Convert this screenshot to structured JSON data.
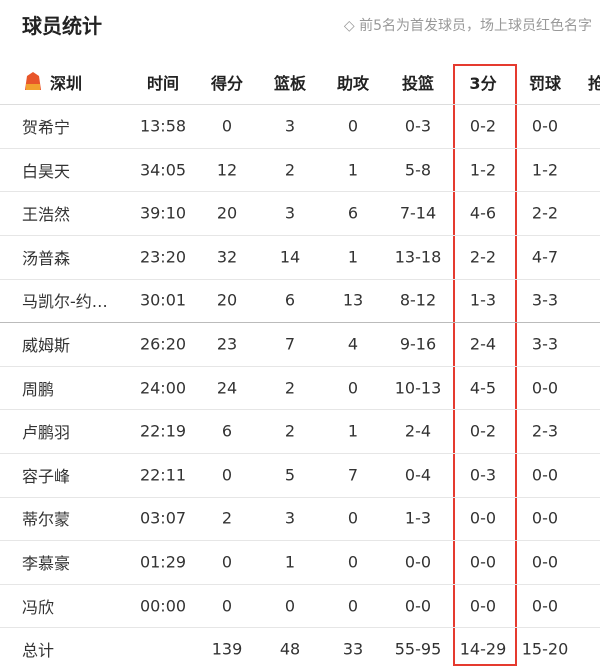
{
  "header": {
    "title": "球员统计",
    "note": "◇ 前5名为首发球员，场上球员红色名字"
  },
  "table": {
    "columns": [
      "深圳",
      "时间",
      "得分",
      "篮板",
      "助攻",
      "投篮",
      "3分",
      "罚球",
      "抢"
    ],
    "rows": [
      [
        "贺希宁",
        "13:58",
        "0",
        "3",
        "0",
        "0-3",
        "0-2",
        "0-0"
      ],
      [
        "白昊天",
        "34:05",
        "12",
        "2",
        "1",
        "5-8",
        "1-2",
        "1-2"
      ],
      [
        "王浩然",
        "39:10",
        "20",
        "3",
        "6",
        "7-14",
        "4-6",
        "2-2"
      ],
      [
        "汤普森",
        "23:20",
        "32",
        "14",
        "1",
        "13-18",
        "2-2",
        "4-7"
      ],
      [
        "马凯尔-约…",
        "30:01",
        "20",
        "6",
        "13",
        "8-12",
        "1-3",
        "3-3"
      ],
      [
        "威姆斯",
        "26:20",
        "23",
        "7",
        "4",
        "9-16",
        "2-4",
        "3-3"
      ],
      [
        "周鹏",
        "24:00",
        "24",
        "2",
        "0",
        "10-13",
        "4-5",
        "0-0"
      ],
      [
        "卢鹏羽",
        "22:19",
        "6",
        "2",
        "1",
        "2-4",
        "0-2",
        "2-3"
      ],
      [
        "容子峰",
        "22:11",
        "0",
        "5",
        "7",
        "0-4",
        "0-3",
        "0-0"
      ],
      [
        "蒂尔蒙",
        "03:07",
        "2",
        "3",
        "0",
        "1-3",
        "0-0",
        "0-0"
      ],
      [
        "李慕豪",
        "01:29",
        "0",
        "1",
        "0",
        "0-0",
        "0-0",
        "0-0"
      ],
      [
        "冯欣",
        "00:00",
        "0",
        "0",
        "0",
        "0-0",
        "0-0",
        "0-0"
      ]
    ],
    "total": {
      "label": "总计",
      "values": [
        "139",
        "48",
        "33",
        "55-95",
        "14-29",
        "15-20"
      ]
    }
  }
}
